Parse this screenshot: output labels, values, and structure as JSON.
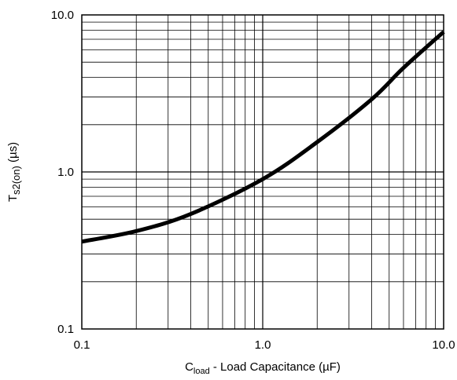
{
  "chart_data": {
    "type": "line",
    "x_scale": "log",
    "y_scale": "log",
    "xlim": [
      0.1,
      10.0
    ],
    "ylim": [
      0.1,
      10.0
    ],
    "grid": true,
    "xlabel": {
      "main": "C",
      "subscript": "load",
      "rest": " - Load Capacitance (µF)"
    },
    "ylabel": {
      "main": "T",
      "subscript": "s2(on)",
      "rest": " (µs)"
    },
    "x_ticks": [
      {
        "value": 0.1,
        "label": "0.1"
      },
      {
        "value": 1.0,
        "label": "1.0"
      },
      {
        "value": 10.0,
        "label": "10.0"
      }
    ],
    "y_ticks": [
      {
        "value": 0.1,
        "label": "0.1"
      },
      {
        "value": 1.0,
        "label": "1.0"
      },
      {
        "value": 10.0,
        "label": "10.0"
      }
    ],
    "series": [
      {
        "color": "#000000",
        "x": [
          0.1,
          0.2,
          0.4,
          1.0,
          2.0,
          4.0,
          6.0,
          10.0
        ],
        "y": [
          0.36,
          0.42,
          0.54,
          0.9,
          1.55,
          2.9,
          4.6,
          7.8
        ]
      }
    ]
  }
}
